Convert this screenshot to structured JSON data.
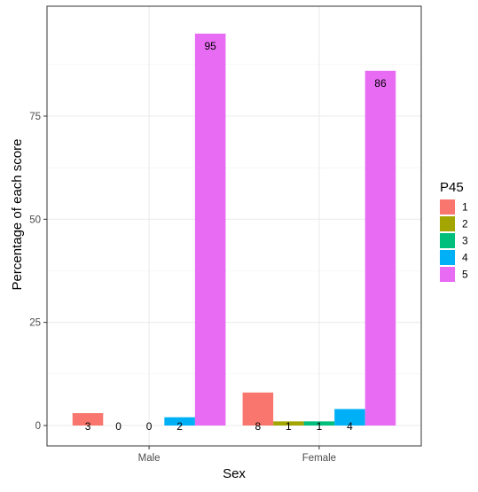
{
  "chart_data": {
    "type": "bar",
    "title": "",
    "xlabel": "Sex",
    "ylabel": "Percentage of each score",
    "categories": [
      "Male",
      "Female"
    ],
    "ylim": [
      0,
      100
    ],
    "yticks": [
      0,
      25,
      50,
      75
    ],
    "grid": true,
    "legend": {
      "title": "P45",
      "placement": "right"
    },
    "series": [
      {
        "name": "1",
        "color": "#F8766D",
        "values": [
          3,
          8
        ],
        "labels": [
          "3",
          "8"
        ]
      },
      {
        "name": "2",
        "color": "#A3A500",
        "values": [
          0,
          1
        ],
        "labels": [
          "0",
          "1"
        ]
      },
      {
        "name": "3",
        "color": "#00BF7D",
        "values": [
          0,
          1
        ],
        "labels": [
          "0",
          "1"
        ]
      },
      {
        "name": "4",
        "color": "#00B0F6",
        "values": [
          2,
          4
        ],
        "labels": [
          "2",
          "4"
        ]
      },
      {
        "name": "5",
        "color": "#E76BF3",
        "values": [
          95,
          86
        ],
        "labels": [
          "95",
          "86"
        ]
      }
    ]
  }
}
